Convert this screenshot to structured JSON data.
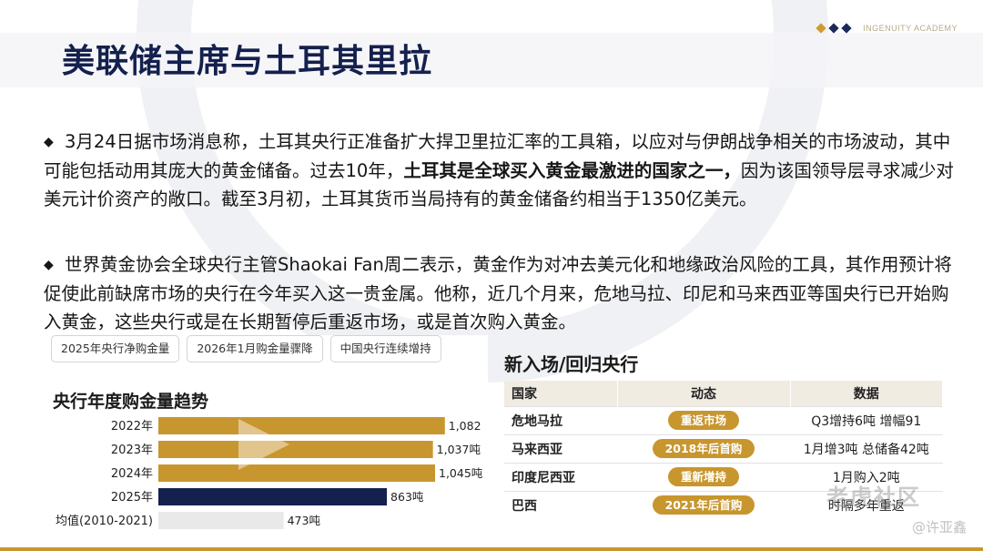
{
  "header": {
    "title": "美联储主席与土耳其里拉",
    "brand": "INGENUITY ACADEMY",
    "brand_colors": [
      "#d19a2f",
      "#1c2a5a",
      "#1c2a5a"
    ]
  },
  "body": {
    "bullet_icon": "◆",
    "p1_a": "3月24日据市场消息称，土耳其央行正准备扩大捍卫里拉汇率的工具箱，以应对与伊朗战争相关的市场波动，其中可能包括动用其庞大的黄金储备。过去10年，",
    "p1_bold": "土耳其是全球买入黄金最激进的国家之一，",
    "p1_b": "因为该国领导层寻求减少对美元计价资产的敞口。截至3月初，土耳其货币当局持有的黄金储备约相当于1350亿美元。",
    "p2": "世界黄金协会全球央行主管Shaokai Fan周二表示，黄金作为对冲去美元化和地缘政治风险的工具，其作用预计将促使此前缺席市场的央行在今年买入这一贵金属。他称，近几个月来，危地马拉、印尼和马来西亚等国央行已开始购入黄金，这些央行或是在长期暂停后重返市场，或是首次购入黄金。"
  },
  "left_panel": {
    "tabs": [
      "2025年央行净购金量",
      "2026年1月购金量骤降",
      "中国央行连续增持"
    ],
    "chart_title": "央行年度购金量趋势",
    "play_icon": "play-triangle-icon"
  },
  "chart_data": {
    "type": "bar",
    "orientation": "horizontal",
    "title": "央行年度购金量趋势",
    "categories": [
      "2022年",
      "2023年",
      "2024年",
      "2025年",
      "均值(2010-2021)"
    ],
    "values": [
      1082,
      1037,
      1045,
      863,
      473
    ],
    "value_labels": [
      "1,082",
      "1,037吨",
      "1,045吨",
      "863吨",
      "473吨"
    ],
    "colors": [
      "#c8962e",
      "#c8962e",
      "#c8962e",
      "#14204d",
      "#e9e9e9"
    ],
    "xlim": [
      0,
      1100
    ]
  },
  "right_panel": {
    "title": "新入场/回归央行",
    "headers": [
      "国家",
      "动态",
      "数据"
    ],
    "rows": [
      {
        "country": "危地马拉",
        "status": "重返市场",
        "data": "Q3增持6吨 增幅91"
      },
      {
        "country": "马来西亚",
        "status": "2018年后首购",
        "data": "1月增3吨 总储备42吨"
      },
      {
        "country": "印度尼西亚",
        "status": "重新增持",
        "data": "1月购入2吨"
      },
      {
        "country": "巴西",
        "status": "2021年后首购",
        "data": "时隔多年重返"
      }
    ]
  },
  "watermark": {
    "text": "老虎社区",
    "author": "@许亚鑫"
  }
}
